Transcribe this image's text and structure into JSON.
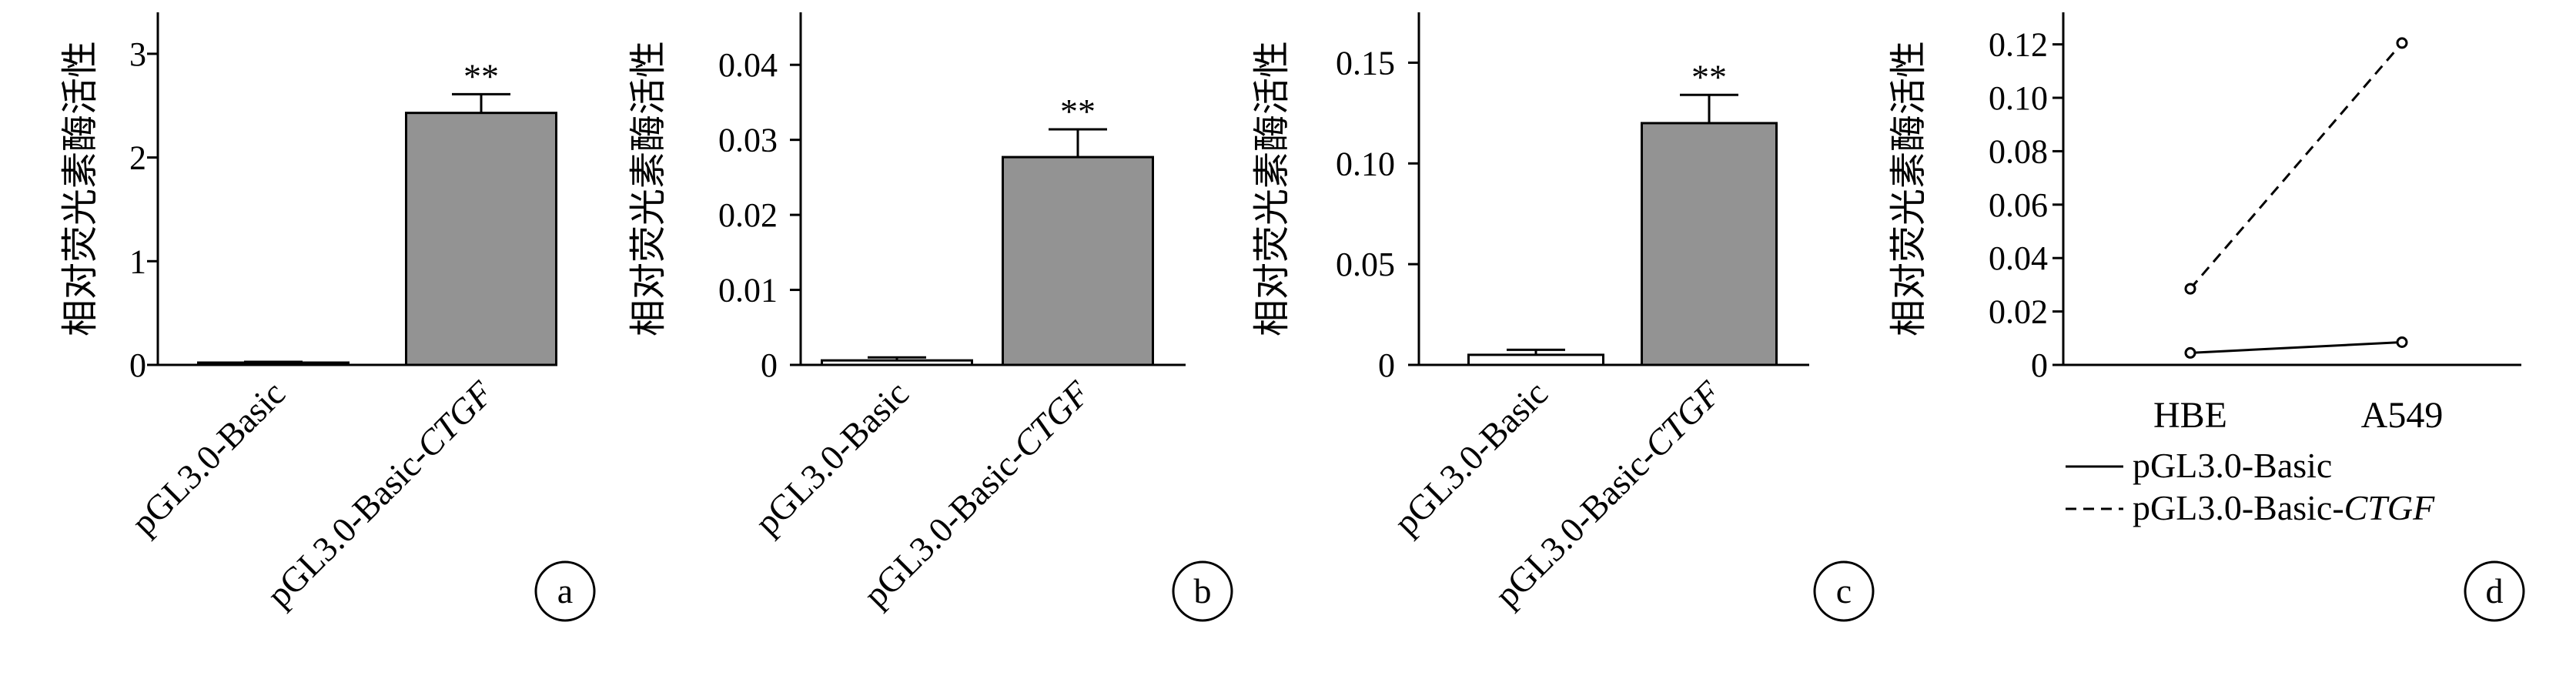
{
  "chart_data": [
    {
      "panel": "a",
      "type": "bar",
      "ylabel": "相对荧光素酶活性",
      "categories": [
        "pGL3.0-Basic",
        "pGL3.0-Basic-CTGF"
      ],
      "categories_italic_suffix": [
        "",
        "CTGF"
      ],
      "values": [
        0.01,
        2.43
      ],
      "errors": [
        0.02,
        0.18
      ],
      "bar_fill": [
        "#ffffff",
        "#939393"
      ],
      "annotations": [
        "",
        "**"
      ],
      "ylim": [
        0,
        3.4
      ],
      "yticks": [
        0,
        1,
        2,
        3
      ],
      "ytick_labels": [
        "0",
        "1",
        "2",
        "3"
      ]
    },
    {
      "panel": "b",
      "type": "bar",
      "ylabel": "相对荧光素酶活性",
      "categories": [
        "pGL3.0-Basic",
        "pGL3.0-Basic-CTGF"
      ],
      "categories_italic_suffix": [
        "",
        "CTGF"
      ],
      "values": [
        0.0006,
        0.0277
      ],
      "errors": [
        0.0004,
        0.0037
      ],
      "bar_fill": [
        "#ffffff",
        "#939393"
      ],
      "annotations": [
        "",
        "**"
      ],
      "ylim": [
        0,
        0.047
      ],
      "yticks": [
        0,
        0.01,
        0.02,
        0.03,
        0.04
      ],
      "ytick_labels": [
        "0",
        "0.01",
        "0.02",
        "0.03",
        "0.04"
      ]
    },
    {
      "panel": "c",
      "type": "bar",
      "ylabel": "相对荧光素酶活性",
      "categories": [
        "pGL3.0-Basic",
        "pGL3.0-Basic-CTGF"
      ],
      "categories_italic_suffix": [
        "",
        "CTGF"
      ],
      "values": [
        0.005,
        0.12
      ],
      "errors": [
        0.0025,
        0.014
      ],
      "bar_fill": [
        "#ffffff",
        "#939393"
      ],
      "annotations": [
        "",
        "**"
      ],
      "ylim": [
        0,
        0.175
      ],
      "yticks": [
        0,
        0.05,
        0.1,
        0.15
      ],
      "ytick_labels": [
        "0",
        "0.05",
        "0.10",
        "0.15"
      ]
    },
    {
      "panel": "d",
      "type": "line",
      "ylabel": "相对荧光素酶活性",
      "categories": [
        "HBE",
        "A549"
      ],
      "series": [
        {
          "name": "pGL3.0-Basic",
          "italic_suffix": "",
          "values": [
            0.0045,
            0.0085
          ],
          "dash": "solid"
        },
        {
          "name": "pGL3.0-Basic-CTGF",
          "italic_suffix": "CTGF",
          "values": [
            0.0285,
            0.1205
          ],
          "dash": "dashed"
        }
      ],
      "ylim": [
        0,
        0.132
      ],
      "yticks": [
        0,
        0.02,
        0.04,
        0.06,
        0.08,
        0.1,
        0.12
      ],
      "ytick_labels": [
        "0",
        "0.02",
        "0.04",
        "0.06",
        "0.08",
        "0.10",
        "0.12"
      ],
      "legend_position": "bottom-left"
    }
  ]
}
